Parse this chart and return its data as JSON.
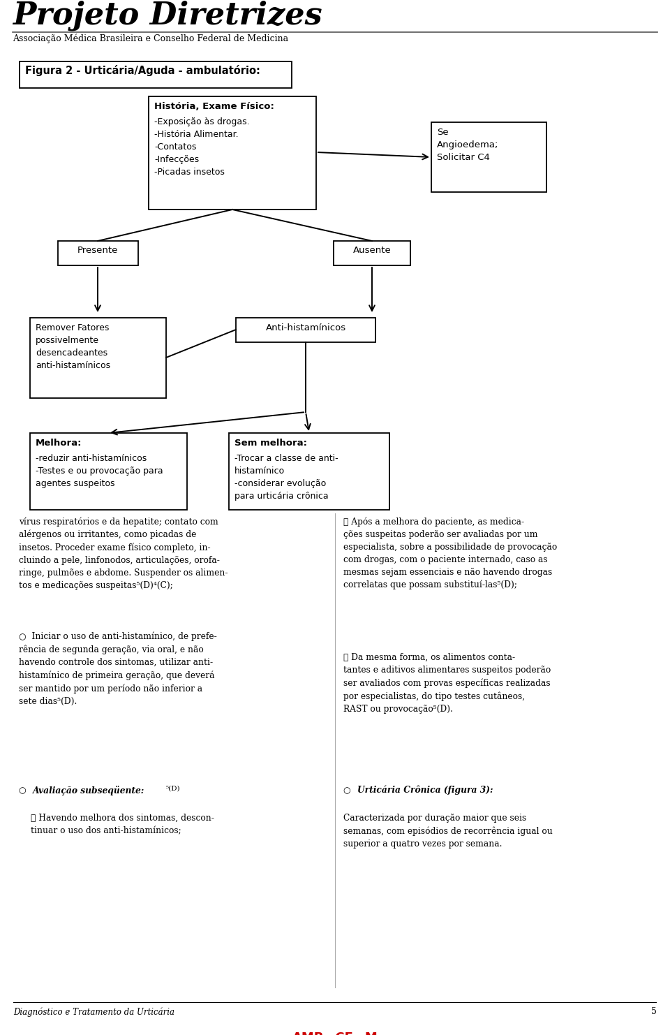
{
  "bg_color": "#c8c8c8",
  "white": "#ffffff",
  "page_bg": "#ffffff",
  "header_title": "Projeto Diretrizes",
  "header_subtitle": "Associação Médica Brasileira e Conselho Federal de Medicina",
  "figura_title": "Figura 2 - Urticária/Aguda - ambulatório:",
  "box_historia_title": "História, Exame Físico:",
  "box_historia_text": "-Exposição às drogas.\n-História Alimentar.\n-Contatos\n-Infecções\n-Picadas insetos",
  "box_angioedema_text": "Se\nAngioedema;\nSolicitar C4",
  "box_presente": "Presente",
  "box_ausente": "Ausente",
  "box_remover_text": "Remover Fatores\npossivelmente\ndesencadeantes\nanti-histamínicos",
  "box_anti_text": "Anti-histamínicos",
  "box_melhora_title": "Melhora:",
  "box_melhora_text": "-reduzir anti-histamínicos\n-Testes e ou provocação para\nagentes suspeitos",
  "box_semmelhora_title": "Sem melhora:",
  "box_semmelhora_text": "-Trocar a classe de anti-\nhistamínico\n-considerar evolução\npara urticária crônica",
  "footer_left": "Diagnóstico e Tratamento da Urticária",
  "footer_page": "5"
}
